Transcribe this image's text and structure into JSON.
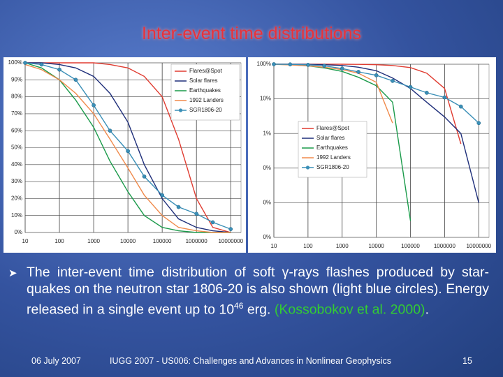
{
  "slide": {
    "title": "Inter-event time distributions",
    "bullet": [
      "The inter-event time distribution of soft ",
      "γ",
      "-rays flashes produced by star-quakes on the neutron star 1806-20 is also shown (light blue circles). Energy released in a single event up to 10",
      "46",
      " erg. ",
      "(Kossobokov et al. 2000)",
      "."
    ],
    "footer": {
      "date": "06 July 2007",
      "conference": "IUGG 2007 - US006:  Challenges and Advances in Nonlinear Geophysics",
      "page": "15"
    }
  },
  "chart_data": [
    {
      "type": "line",
      "xscale": "log",
      "yscale": "linear",
      "grid": true,
      "legend": "upper right",
      "x": [
        10,
        30,
        100,
        300,
        1000,
        3000,
        10000,
        30000,
        100000,
        300000,
        1000000,
        3000000,
        10000000
      ],
      "xlim": [
        10,
        20000000
      ],
      "xticks": [
        10,
        100,
        1000,
        10000,
        100000,
        1000000,
        10000000
      ],
      "ylim": [
        0,
        100
      ],
      "yticks": [
        {
          "value": 0,
          "label": "0%"
        },
        {
          "value": 10,
          "label": "10%"
        },
        {
          "value": 20,
          "label": "20%"
        },
        {
          "value": 30,
          "label": "30%"
        },
        {
          "value": 40,
          "label": "40%"
        },
        {
          "value": 50,
          "label": "50%"
        },
        {
          "value": 60,
          "label": "60%"
        },
        {
          "value": 70,
          "label": "70%"
        },
        {
          "value": 80,
          "label": "80%"
        },
        {
          "value": 90,
          "label": "90%"
        },
        {
          "value": 100,
          "label": "100%"
        }
      ],
      "series": [
        {
          "name": "Flares@Spot",
          "color": "#e03c31",
          "values": [
            100,
            100,
            100,
            100,
            100,
            99,
            97,
            92,
            80,
            55,
            20,
            3,
            0
          ]
        },
        {
          "name": "Solar flares",
          "color": "#1f2f7a",
          "values": [
            100,
            100,
            99,
            97,
            92,
            82,
            65,
            40,
            20,
            8,
            3,
            1,
            0
          ]
        },
        {
          "name": "Earthquakes",
          "color": "#1a9a4a",
          "values": [
            100,
            97,
            90,
            78,
            62,
            42,
            24,
            10,
            3,
            1,
            0,
            0,
            0
          ]
        },
        {
          "name": "1992 Landers",
          "color": "#f08a4b",
          "values": [
            99,
            96,
            90,
            82,
            70,
            55,
            38,
            22,
            10,
            3,
            1,
            0,
            0
          ]
        },
        {
          "name": "SGR1806-20",
          "color": "#3a8fb7",
          "marker": "circle",
          "values": [
            100,
            99,
            96,
            90,
            75,
            60,
            48,
            33,
            22,
            15,
            11,
            6,
            2
          ]
        }
      ]
    },
    {
      "type": "line",
      "xscale": "log",
      "yscale": "log",
      "grid": true,
      "legend": "center left",
      "x": [
        10,
        30,
        100,
        300,
        1000,
        3000,
        10000,
        30000,
        100000,
        300000,
        1000000,
        3000000,
        10000000
      ],
      "xlim": [
        10,
        20000000
      ],
      "xticks": [
        10,
        100,
        1000,
        10000,
        100000,
        1000000,
        10000000
      ],
      "ylim": [
        0.001,
        100
      ],
      "yticks": [
        {
          "value": 0.001,
          "label": "0%"
        },
        {
          "value": 0.01,
          "label": "0%"
        },
        {
          "value": 0.1,
          "label": "0%"
        },
        {
          "value": 1,
          "label": "1%"
        },
        {
          "value": 10,
          "label": "10%"
        },
        {
          "value": 100,
          "label": "100%"
        }
      ],
      "series": [
        {
          "name": "Flares@Spot",
          "color": "#e03c31",
          "values": [
            100,
            100,
            100,
            100,
            100,
            99,
            97,
            92,
            80,
            55,
            20,
            0.5,
            null
          ]
        },
        {
          "name": "Solar flares",
          "color": "#1f2f7a",
          "values": [
            100,
            100,
            99,
            97,
            92,
            82,
            65,
            40,
            20,
            8,
            3,
            1,
            0.01
          ]
        },
        {
          "name": "Earthquakes",
          "color": "#1a9a4a",
          "values": [
            100,
            97,
            90,
            78,
            62,
            42,
            24,
            8,
            0.003,
            null,
            null,
            null,
            null
          ]
        },
        {
          "name": "1992 Landers",
          "color": "#f08a4b",
          "values": [
            99,
            96,
            90,
            82,
            70,
            55,
            30,
            2,
            null,
            null,
            null,
            null,
            null
          ]
        },
        {
          "name": "SGR1806-20",
          "color": "#3a8fb7",
          "marker": "circle",
          "values": [
            100,
            99,
            96,
            90,
            75,
            60,
            48,
            33,
            22,
            15,
            11,
            6,
            2
          ]
        }
      ]
    }
  ]
}
